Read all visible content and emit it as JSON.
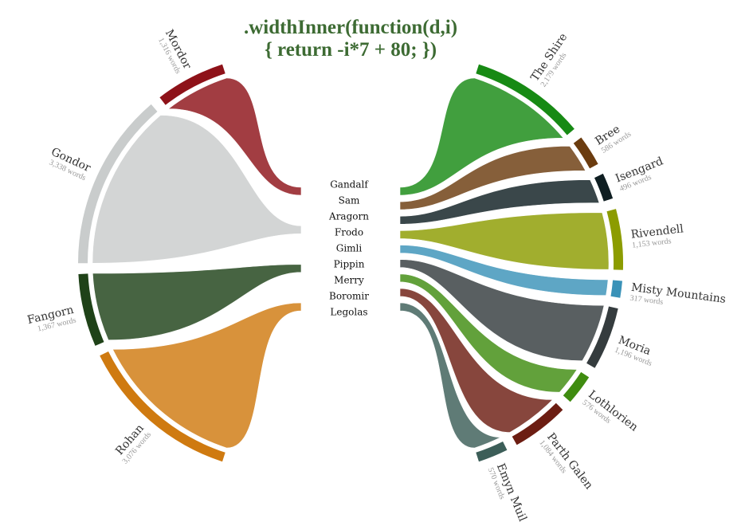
{
  "chart_data": {
    "type": "loom",
    "title": ".widthInner(function(d,i)",
    "subtitle": "{ return -i*7 + 80; })",
    "inner_labels": [
      "Gandalf",
      "Sam",
      "Aragorn",
      "Frodo",
      "Gimli",
      "Pippin",
      "Merry",
      "Boromir",
      "Legolas"
    ],
    "groups": [
      {
        "categories": [
          "Mordor",
          "Gondor",
          "Fangorn",
          "Rohan"
        ],
        "values": [
          1316,
          3338,
          1367,
          3076
        ],
        "value_labels": [
          "1,316 words",
          "3,338 words",
          "1,367 words",
          "3,076 words"
        ],
        "colors": [
          "#8e1219",
          "#c9cccc",
          "#1f4218",
          "#cf7a10"
        ]
      },
      {
        "categories": [
          "The Shire",
          "Bree",
          "Isengard",
          "Rivendell",
          "Misty Mountains",
          "Moria",
          "Lothlorien",
          "Parth Galen",
          "Emyn Muil"
        ],
        "values": [
          2179,
          586,
          496,
          1153,
          317,
          1196,
          576,
          1084,
          570
        ],
        "value_labels": [
          "2,179 words",
          "586 words",
          "496 words",
          "1,153 words",
          "317 words",
          "1,196 words",
          "576 words",
          "1,084 words",
          "570 words"
        ],
        "colors": [
          "#178a14",
          "#6b3c0f",
          "#0f1e22",
          "#8c9c00",
          "#3a92b8",
          "#353c3e",
          "#3f8c10",
          "#6c1d12",
          "#3c5e58"
        ]
      }
    ]
  }
}
